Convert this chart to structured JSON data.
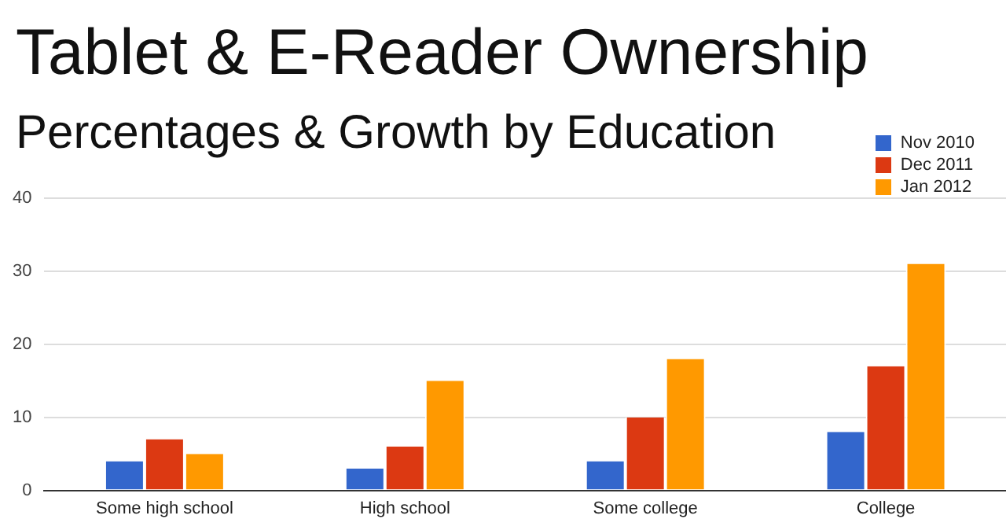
{
  "chart_data": {
    "type": "bar",
    "title": "Tablet & E-Reader Ownership",
    "subtitle": "Percentages & Growth by Education",
    "categories": [
      "Some high school",
      "High school",
      "Some college",
      "College"
    ],
    "series": [
      {
        "name": "Nov 2010",
        "color": "#3366cc",
        "values": [
          4,
          3,
          4,
          8
        ]
      },
      {
        "name": "Dec 2011",
        "color": "#dc3912",
        "values": [
          7,
          6,
          10,
          17
        ]
      },
      {
        "name": "Jan 2012",
        "color": "#ff9900",
        "values": [
          5,
          15,
          18,
          31
        ]
      }
    ],
    "ylim": [
      0,
      40
    ],
    "yticks": [
      0,
      10,
      20,
      30,
      40
    ],
    "grid": "y",
    "legend": "top right"
  }
}
